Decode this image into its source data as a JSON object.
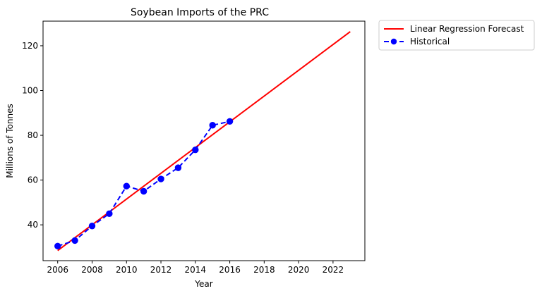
{
  "chart_data": {
    "type": "line",
    "title": "Soybean Imports of the PRC",
    "xlabel": "Year",
    "ylabel": "Millions of Tonnes",
    "xlim": [
      2005.15,
      2023.85
    ],
    "ylim": [
      24,
      131
    ],
    "x_ticks": [
      2006,
      2008,
      2010,
      2012,
      2014,
      2016,
      2018,
      2020,
      2022
    ],
    "y_ticks": [
      40,
      60,
      80,
      100,
      120
    ],
    "grid": false,
    "legend_position": "outside-top-right",
    "series": [
      {
        "name": "Linear Regression Forecast",
        "style": "solid",
        "color": "#ff0000",
        "markers": false,
        "x": [
          2006,
          2023
        ],
        "y": [
          28.5,
          126.3
        ]
      },
      {
        "name": "Historical",
        "style": "dashed",
        "color": "#0000ff",
        "markers": true,
        "x": [
          2006,
          2007,
          2008,
          2009,
          2010,
          2011,
          2012,
          2013,
          2014,
          2015,
          2016
        ],
        "y": [
          30.5,
          33.0,
          39.5,
          45.0,
          57.3,
          55.0,
          60.5,
          65.5,
          73.5,
          84.5,
          86.2
        ]
      }
    ]
  }
}
